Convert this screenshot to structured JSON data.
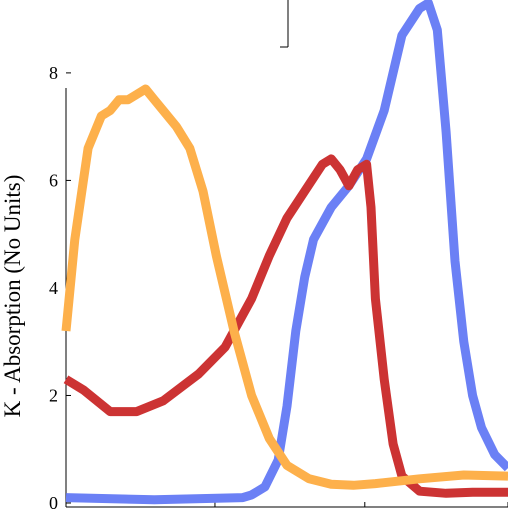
{
  "chart_data": {
    "type": "line",
    "title": "",
    "xlabel": "",
    "ylabel": "K - Absorption (No Units)",
    "ylim": [
      0,
      9.3
    ],
    "y_ticks": [
      0,
      2,
      4,
      6,
      8
    ],
    "y_tick_labels": [
      "0",
      "2",
      "4",
      "6",
      "8"
    ],
    "xlim": [
      0,
      1
    ],
    "x_ticks": [
      0.337,
      0.676,
      1.0
    ],
    "grid": false,
    "legend": "none",
    "series": [
      {
        "color": "#6b80f5",
        "x": [
          0,
          0.2,
          0.4,
          0.42,
          0.45,
          0.48,
          0.5,
          0.52,
          0.54,
          0.56,
          0.6,
          0.64,
          0.68,
          0.72,
          0.76,
          0.8,
          0.82,
          0.84,
          0.86,
          0.88,
          0.9,
          0.92,
          0.94,
          0.97,
          1.0
        ],
        "y": [
          0.1,
          0.06,
          0.1,
          0.15,
          0.3,
          0.8,
          1.8,
          3.2,
          4.2,
          4.9,
          5.5,
          5.9,
          6.4,
          7.3,
          8.7,
          9.2,
          9.3,
          8.8,
          6.9,
          4.5,
          3.0,
          2.0,
          1.4,
          0.9,
          0.65
        ]
      },
      {
        "color": "#cc3333",
        "x": [
          0,
          0.04,
          0.1,
          0.16,
          0.22,
          0.3,
          0.36,
          0.42,
          0.46,
          0.5,
          0.54,
          0.58,
          0.6,
          0.62,
          0.64,
          0.66,
          0.68,
          0.69,
          0.7,
          0.72,
          0.74,
          0.76,
          0.8,
          0.86,
          0.92,
          1.0
        ],
        "y": [
          2.3,
          2.1,
          1.7,
          1.7,
          1.9,
          2.4,
          2.9,
          3.8,
          4.6,
          5.3,
          5.8,
          6.3,
          6.4,
          6.2,
          5.9,
          6.2,
          6.3,
          5.5,
          3.8,
          2.3,
          1.1,
          0.5,
          0.22,
          0.18,
          0.2,
          0.2
        ]
      },
      {
        "color": "#fdb04b",
        "x": [
          0,
          0.02,
          0.05,
          0.08,
          0.1,
          0.12,
          0.14,
          0.16,
          0.18,
          0.2,
          0.22,
          0.25,
          0.28,
          0.31,
          0.34,
          0.38,
          0.42,
          0.46,
          0.5,
          0.55,
          0.6,
          0.65,
          0.7,
          0.8,
          0.9,
          1.0
        ],
        "y": [
          3.2,
          4.9,
          6.6,
          7.2,
          7.3,
          7.5,
          7.5,
          7.6,
          7.7,
          7.5,
          7.3,
          7.0,
          6.6,
          5.8,
          4.6,
          3.2,
          2.0,
          1.2,
          0.7,
          0.45,
          0.35,
          0.33,
          0.36,
          0.45,
          0.52,
          0.5
        ]
      }
    ]
  }
}
